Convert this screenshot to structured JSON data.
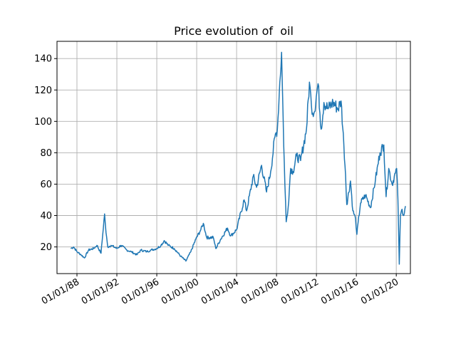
{
  "chart_data": {
    "type": "line",
    "title": "Price evolution of  oil",
    "xlabel": "",
    "ylabel": "",
    "x_ticks": [
      "01/01/88",
      "01/01/92",
      "01/01/96",
      "01/01/00",
      "01/01/04",
      "01/01/08",
      "01/01/12",
      "01/01/16",
      "01/01/20"
    ],
    "y_ticks": [
      "20",
      "40",
      "60",
      "80",
      "100",
      "120",
      "140"
    ],
    "xlim": [
      "1986-01-01",
      "2021-06-01"
    ],
    "ylim": [
      3,
      151
    ],
    "grid": true,
    "line_color": "#1f77b4",
    "series": [
      {
        "x": [
          "1987-05-20",
          "1987-09-01",
          "1988-01-01",
          "1988-06-01",
          "1988-10-01",
          "1989-03-01",
          "1989-09-01",
          "1990-01-01",
          "1990-06-01",
          "1990-08-01",
          "1990-10-10",
          "1990-12-01",
          "1991-02-01",
          "1991-06-01",
          "1992-01-01",
          "1992-06-01",
          "1993-01-01",
          "1993-06-01",
          "1994-01-01",
          "1994-06-01",
          "1995-01-01",
          "1995-06-01",
          "1996-01-01",
          "1996-06-01",
          "1996-10-01",
          "1997-03-01",
          "1997-10-01",
          "1998-06-01",
          "1998-12-01",
          "1999-06-01",
          "1999-12-01",
          "2000-06-01",
          "2000-09-01",
          "2001-01-01",
          "2001-09-01",
          "2001-12-01",
          "2002-06-01",
          "2003-02-01",
          "2003-06-01",
          "2004-01-01",
          "2004-10-01",
          "2005-01-01",
          "2005-09-01",
          "2006-01-01",
          "2006-07-01",
          "2007-01-01",
          "2007-06-01",
          "2007-11-01",
          "2008-02-01",
          "2008-05-01",
          "2008-07-03",
          "2008-09-01",
          "2008-11-01",
          "2008-12-21",
          "2009-03-01",
          "2009-06-01",
          "2009-09-01",
          "2010-01-01",
          "2010-06-01",
          "2011-01-01",
          "2011-04-20",
          "2011-07-01",
          "2011-10-01",
          "2012-03-01",
          "2012-06-20",
          "2012-10-01",
          "2013-03-01",
          "2013-09-01",
          "2014-03-01",
          "2014-06-20",
          "2014-10-01",
          "2014-12-01",
          "2015-01-15",
          "2015-06-01",
          "2015-08-25",
          "2015-12-01",
          "2016-01-20",
          "2016-06-01",
          "2016-12-01",
          "2017-06-01",
          "2017-12-01",
          "2018-05-15",
          "2018-10-01",
          "2018-12-24",
          "2019-04-01",
          "2019-08-01",
          "2019-12-01",
          "2020-01-15",
          "2020-03-01",
          "2020-04-21",
          "2020-06-01",
          "2020-08-01",
          "2020-10-01",
          "2020-12-01"
        ],
        "y": [
          19,
          20,
          17,
          15,
          13,
          18,
          19,
          21,
          16,
          28,
          41,
          29,
          20,
          21,
          19,
          21,
          18,
          17,
          15,
          18,
          17,
          18,
          19,
          21,
          24,
          21,
          19,
          14,
          11,
          17,
          25,
          31,
          35,
          26,
          26,
          19,
          25,
          32,
          27,
          31,
          50,
          43,
          65,
          58,
          72,
          55,
          68,
          90,
          95,
          125,
          144,
          100,
          60,
          36,
          45,
          70,
          68,
          78,
          75,
          95,
          125,
          110,
          105,
          124,
          95,
          112,
          108,
          112,
          108,
          113,
          85,
          66,
          47,
          62,
          43,
          38,
          28,
          48,
          53,
          45,
          63,
          80,
          85,
          52,
          70,
          60,
          67,
          70,
          50,
          9,
          40,
          44,
          40,
          46
        ]
      }
    ]
  }
}
